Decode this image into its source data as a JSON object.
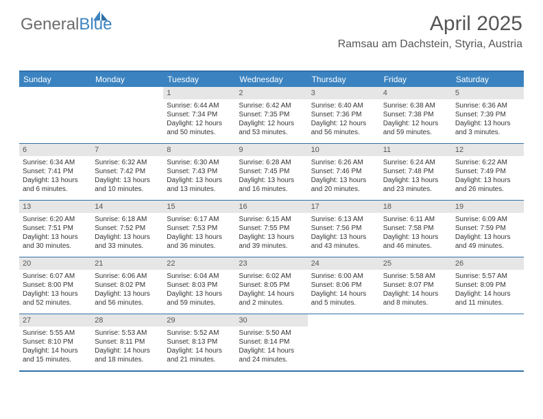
{
  "logo": {
    "general": "General",
    "blue": "Blue"
  },
  "title": "April 2025",
  "subtitle": "Ramsau am Dachstein, Styria, Austria",
  "colors": {
    "header_bar": "#3b83c0",
    "border": "#2f6fa7",
    "daynum_bg": "#e6e6e6",
    "text_dark": "#333333",
    "text_gray": "#555555"
  },
  "weekdays": [
    "Sunday",
    "Monday",
    "Tuesday",
    "Wednesday",
    "Thursday",
    "Friday",
    "Saturday"
  ],
  "weeks": [
    [
      {
        "n": "",
        "sr": "",
        "ss": "",
        "dl": ""
      },
      {
        "n": "",
        "sr": "",
        "ss": "",
        "dl": ""
      },
      {
        "n": "1",
        "sr": "Sunrise: 6:44 AM",
        "ss": "Sunset: 7:34 PM",
        "dl": "Daylight: 12 hours and 50 minutes."
      },
      {
        "n": "2",
        "sr": "Sunrise: 6:42 AM",
        "ss": "Sunset: 7:35 PM",
        "dl": "Daylight: 12 hours and 53 minutes."
      },
      {
        "n": "3",
        "sr": "Sunrise: 6:40 AM",
        "ss": "Sunset: 7:36 PM",
        "dl": "Daylight: 12 hours and 56 minutes."
      },
      {
        "n": "4",
        "sr": "Sunrise: 6:38 AM",
        "ss": "Sunset: 7:38 PM",
        "dl": "Daylight: 12 hours and 59 minutes."
      },
      {
        "n": "5",
        "sr": "Sunrise: 6:36 AM",
        "ss": "Sunset: 7:39 PM",
        "dl": "Daylight: 13 hours and 3 minutes."
      }
    ],
    [
      {
        "n": "6",
        "sr": "Sunrise: 6:34 AM",
        "ss": "Sunset: 7:41 PM",
        "dl": "Daylight: 13 hours and 6 minutes."
      },
      {
        "n": "7",
        "sr": "Sunrise: 6:32 AM",
        "ss": "Sunset: 7:42 PM",
        "dl": "Daylight: 13 hours and 10 minutes."
      },
      {
        "n": "8",
        "sr": "Sunrise: 6:30 AM",
        "ss": "Sunset: 7:43 PM",
        "dl": "Daylight: 13 hours and 13 minutes."
      },
      {
        "n": "9",
        "sr": "Sunrise: 6:28 AM",
        "ss": "Sunset: 7:45 PM",
        "dl": "Daylight: 13 hours and 16 minutes."
      },
      {
        "n": "10",
        "sr": "Sunrise: 6:26 AM",
        "ss": "Sunset: 7:46 PM",
        "dl": "Daylight: 13 hours and 20 minutes."
      },
      {
        "n": "11",
        "sr": "Sunrise: 6:24 AM",
        "ss": "Sunset: 7:48 PM",
        "dl": "Daylight: 13 hours and 23 minutes."
      },
      {
        "n": "12",
        "sr": "Sunrise: 6:22 AM",
        "ss": "Sunset: 7:49 PM",
        "dl": "Daylight: 13 hours and 26 minutes."
      }
    ],
    [
      {
        "n": "13",
        "sr": "Sunrise: 6:20 AM",
        "ss": "Sunset: 7:51 PM",
        "dl": "Daylight: 13 hours and 30 minutes."
      },
      {
        "n": "14",
        "sr": "Sunrise: 6:18 AM",
        "ss": "Sunset: 7:52 PM",
        "dl": "Daylight: 13 hours and 33 minutes."
      },
      {
        "n": "15",
        "sr": "Sunrise: 6:17 AM",
        "ss": "Sunset: 7:53 PM",
        "dl": "Daylight: 13 hours and 36 minutes."
      },
      {
        "n": "16",
        "sr": "Sunrise: 6:15 AM",
        "ss": "Sunset: 7:55 PM",
        "dl": "Daylight: 13 hours and 39 minutes."
      },
      {
        "n": "17",
        "sr": "Sunrise: 6:13 AM",
        "ss": "Sunset: 7:56 PM",
        "dl": "Daylight: 13 hours and 43 minutes."
      },
      {
        "n": "18",
        "sr": "Sunrise: 6:11 AM",
        "ss": "Sunset: 7:58 PM",
        "dl": "Daylight: 13 hours and 46 minutes."
      },
      {
        "n": "19",
        "sr": "Sunrise: 6:09 AM",
        "ss": "Sunset: 7:59 PM",
        "dl": "Daylight: 13 hours and 49 minutes."
      }
    ],
    [
      {
        "n": "20",
        "sr": "Sunrise: 6:07 AM",
        "ss": "Sunset: 8:00 PM",
        "dl": "Daylight: 13 hours and 52 minutes."
      },
      {
        "n": "21",
        "sr": "Sunrise: 6:06 AM",
        "ss": "Sunset: 8:02 PM",
        "dl": "Daylight: 13 hours and 56 minutes."
      },
      {
        "n": "22",
        "sr": "Sunrise: 6:04 AM",
        "ss": "Sunset: 8:03 PM",
        "dl": "Daylight: 13 hours and 59 minutes."
      },
      {
        "n": "23",
        "sr": "Sunrise: 6:02 AM",
        "ss": "Sunset: 8:05 PM",
        "dl": "Daylight: 14 hours and 2 minutes."
      },
      {
        "n": "24",
        "sr": "Sunrise: 6:00 AM",
        "ss": "Sunset: 8:06 PM",
        "dl": "Daylight: 14 hours and 5 minutes."
      },
      {
        "n": "25",
        "sr": "Sunrise: 5:58 AM",
        "ss": "Sunset: 8:07 PM",
        "dl": "Daylight: 14 hours and 8 minutes."
      },
      {
        "n": "26",
        "sr": "Sunrise: 5:57 AM",
        "ss": "Sunset: 8:09 PM",
        "dl": "Daylight: 14 hours and 11 minutes."
      }
    ],
    [
      {
        "n": "27",
        "sr": "Sunrise: 5:55 AM",
        "ss": "Sunset: 8:10 PM",
        "dl": "Daylight: 14 hours and 15 minutes."
      },
      {
        "n": "28",
        "sr": "Sunrise: 5:53 AM",
        "ss": "Sunset: 8:11 PM",
        "dl": "Daylight: 14 hours and 18 minutes."
      },
      {
        "n": "29",
        "sr": "Sunrise: 5:52 AM",
        "ss": "Sunset: 8:13 PM",
        "dl": "Daylight: 14 hours and 21 minutes."
      },
      {
        "n": "30",
        "sr": "Sunrise: 5:50 AM",
        "ss": "Sunset: 8:14 PM",
        "dl": "Daylight: 14 hours and 24 minutes."
      },
      {
        "n": "",
        "sr": "",
        "ss": "",
        "dl": ""
      },
      {
        "n": "",
        "sr": "",
        "ss": "",
        "dl": ""
      },
      {
        "n": "",
        "sr": "",
        "ss": "",
        "dl": ""
      }
    ]
  ]
}
